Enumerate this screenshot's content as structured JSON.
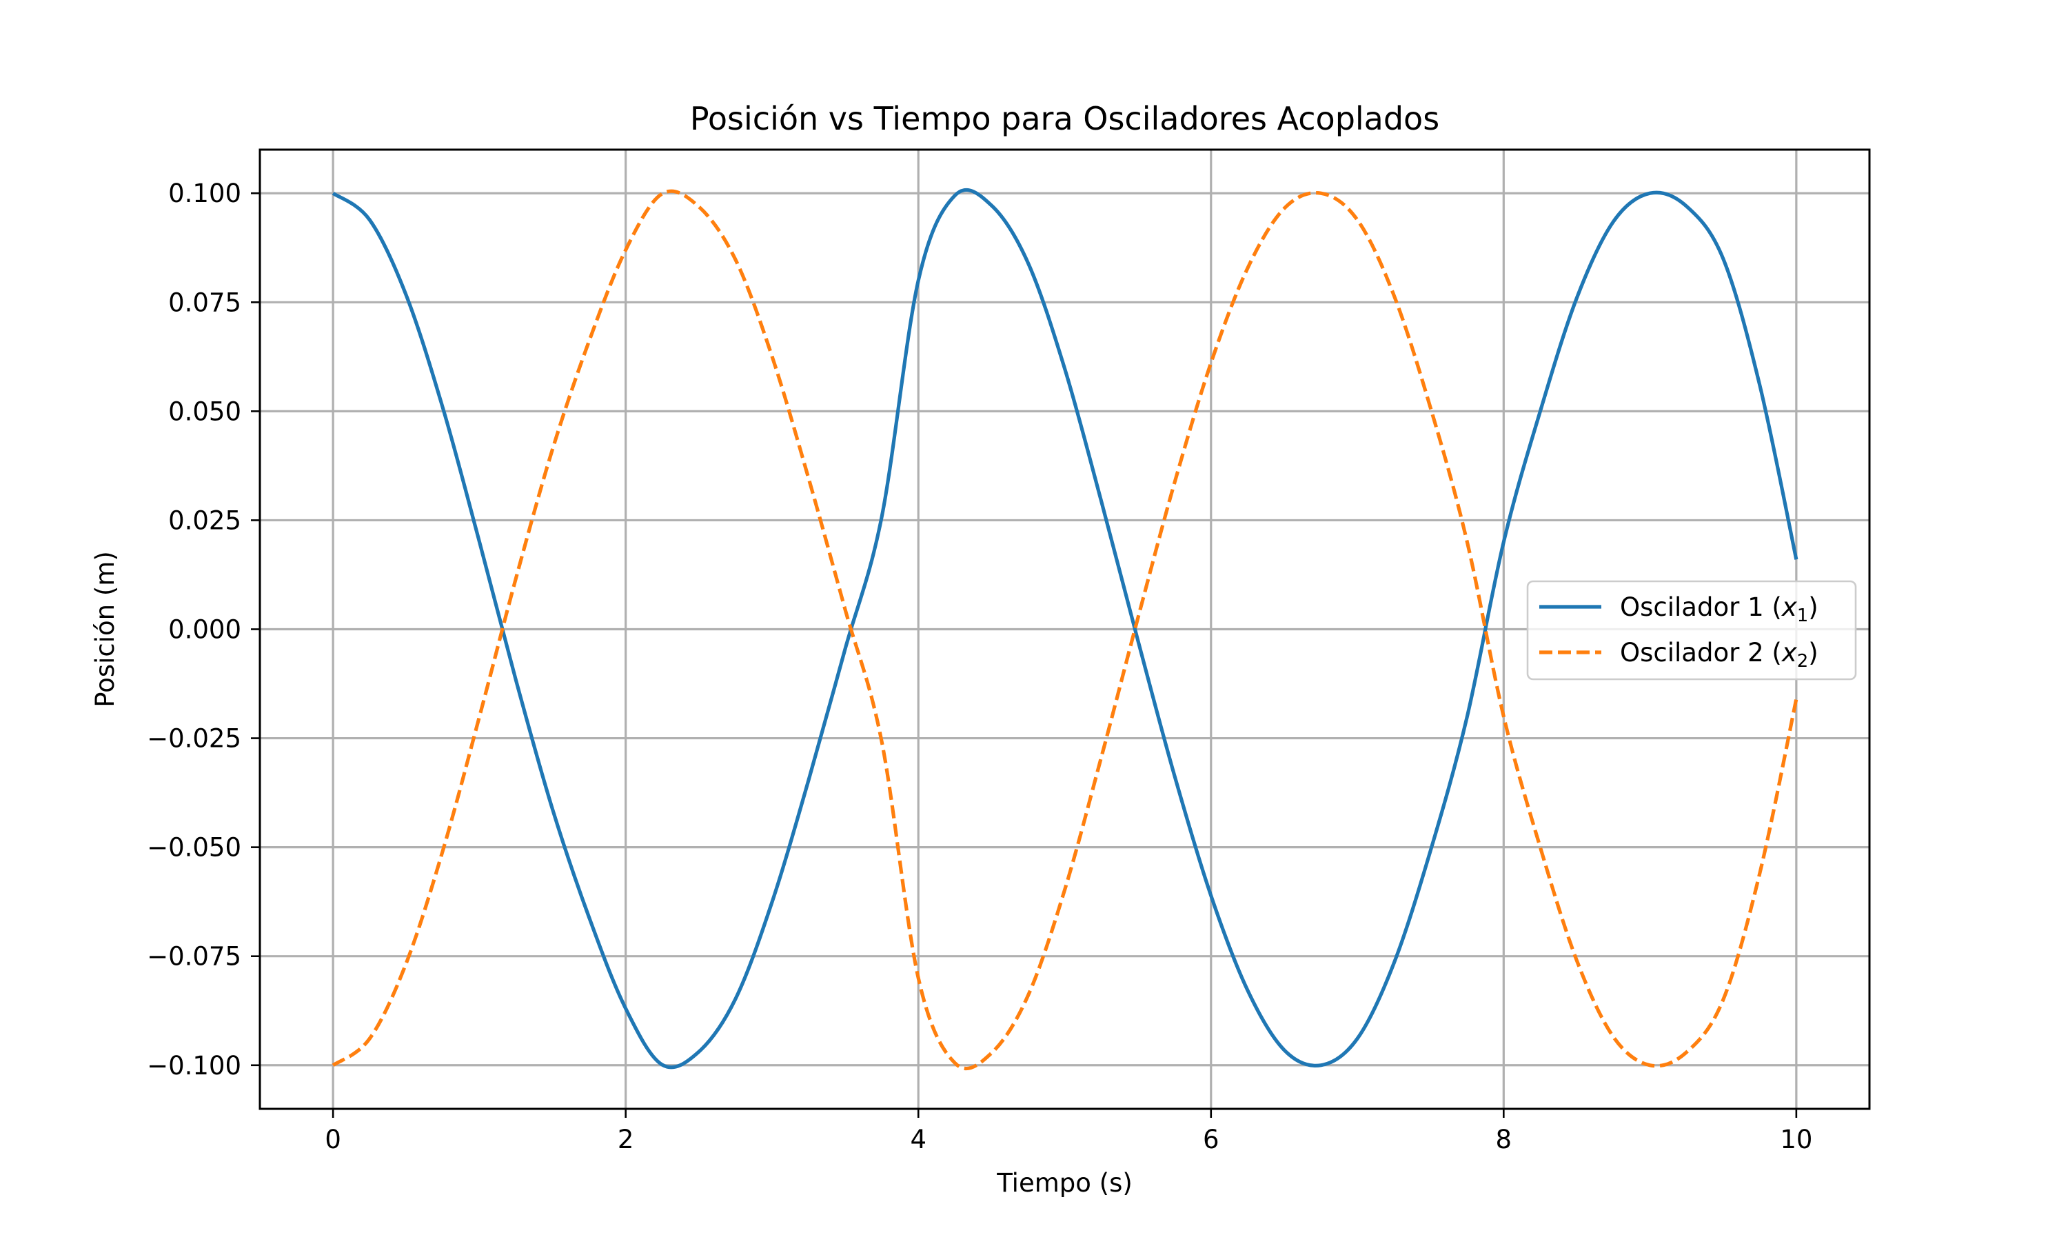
{
  "chart_data": {
    "type": "line",
    "title": "Posición vs Tiempo para Osciladores Acoplados",
    "xlabel": "Tiempo (s)",
    "ylabel": "Posición (m)",
    "xlim": [
      -0.5,
      10.5
    ],
    "ylim": [
      -0.11,
      0.11
    ],
    "grid": true,
    "legend_position": "center-right",
    "x_ticks": [
      0,
      2,
      4,
      6,
      8,
      10
    ],
    "x_tick_labels": [
      "0",
      "2",
      "4",
      "6",
      "8",
      "10"
    ],
    "y_ticks": [
      0.1,
      0.075,
      0.05,
      0.025,
      0.0,
      -0.025,
      -0.05,
      -0.075,
      -0.1
    ],
    "y_tick_labels": [
      "0.100",
      "0.075",
      "0.050",
      "0.025",
      "0.000",
      "−0.025",
      "−0.050",
      "−0.075",
      "−0.100"
    ],
    "x": [
      0,
      0.25,
      0.5,
      0.75,
      1,
      1.25,
      1.5,
      1.75,
      2,
      2.25,
      2.5,
      2.75,
      3,
      3.25,
      3.5,
      3.75,
      4,
      4.25,
      4.5,
      4.75,
      5,
      5.25,
      5.5,
      5.75,
      6,
      6.25,
      6.5,
      6.75,
      7,
      7.25,
      7.5,
      7.75,
      8,
      8.25,
      8.5,
      8.75,
      9,
      9.25,
      9.5,
      9.75,
      10
    ],
    "series": [
      {
        "name": "Oscilador 1 (x₁)",
        "name_base": "Oscilador 1 (",
        "name_var": "x",
        "name_sub": "1",
        "name_close": ")",
        "color": "#1f77b4",
        "line_style": "solid",
        "values": [
          0.1,
          0.0939,
          0.0766,
          0.0508,
          0.0201,
          -0.0117,
          -0.0413,
          -0.0661,
          -0.087,
          -0.0999,
          -0.0969,
          -0.0848,
          -0.0626,
          -0.0346,
          -0.0045,
          0.0258,
          0.08,
          0.0995,
          0.0972,
          0.084,
          0.0598,
          0.0294,
          -0.0025,
          -0.0335,
          -0.0611,
          -0.0828,
          -0.0965,
          -0.1,
          -0.0939,
          -0.0766,
          -0.0508,
          -0.0201,
          0.02,
          0.05,
          0.076,
          0.0935,
          0.1,
          0.097,
          0.085,
          0.056,
          0.016
        ]
      },
      {
        "name": "Oscilador 2 (x₂)",
        "name_base": "Oscilador 2 (",
        "name_var": "x",
        "name_sub": "2",
        "name_close": ")",
        "color": "#ff7f0e",
        "line_style": "dashed",
        "values": [
          -0.1,
          -0.0939,
          -0.0766,
          -0.0508,
          -0.0201,
          0.0117,
          0.0413,
          0.0661,
          0.087,
          0.0999,
          0.0969,
          0.0848,
          0.0626,
          0.0346,
          0.0045,
          -0.0258,
          -0.08,
          -0.0995,
          -0.0972,
          -0.084,
          -0.0598,
          -0.0294,
          0.0025,
          0.0335,
          0.0611,
          0.0828,
          0.0965,
          0.1,
          0.0939,
          0.0766,
          0.0508,
          0.0201,
          -0.02,
          -0.05,
          -0.076,
          -0.0935,
          -0.1,
          -0.097,
          -0.085,
          -0.056,
          -0.016
        ]
      }
    ]
  }
}
